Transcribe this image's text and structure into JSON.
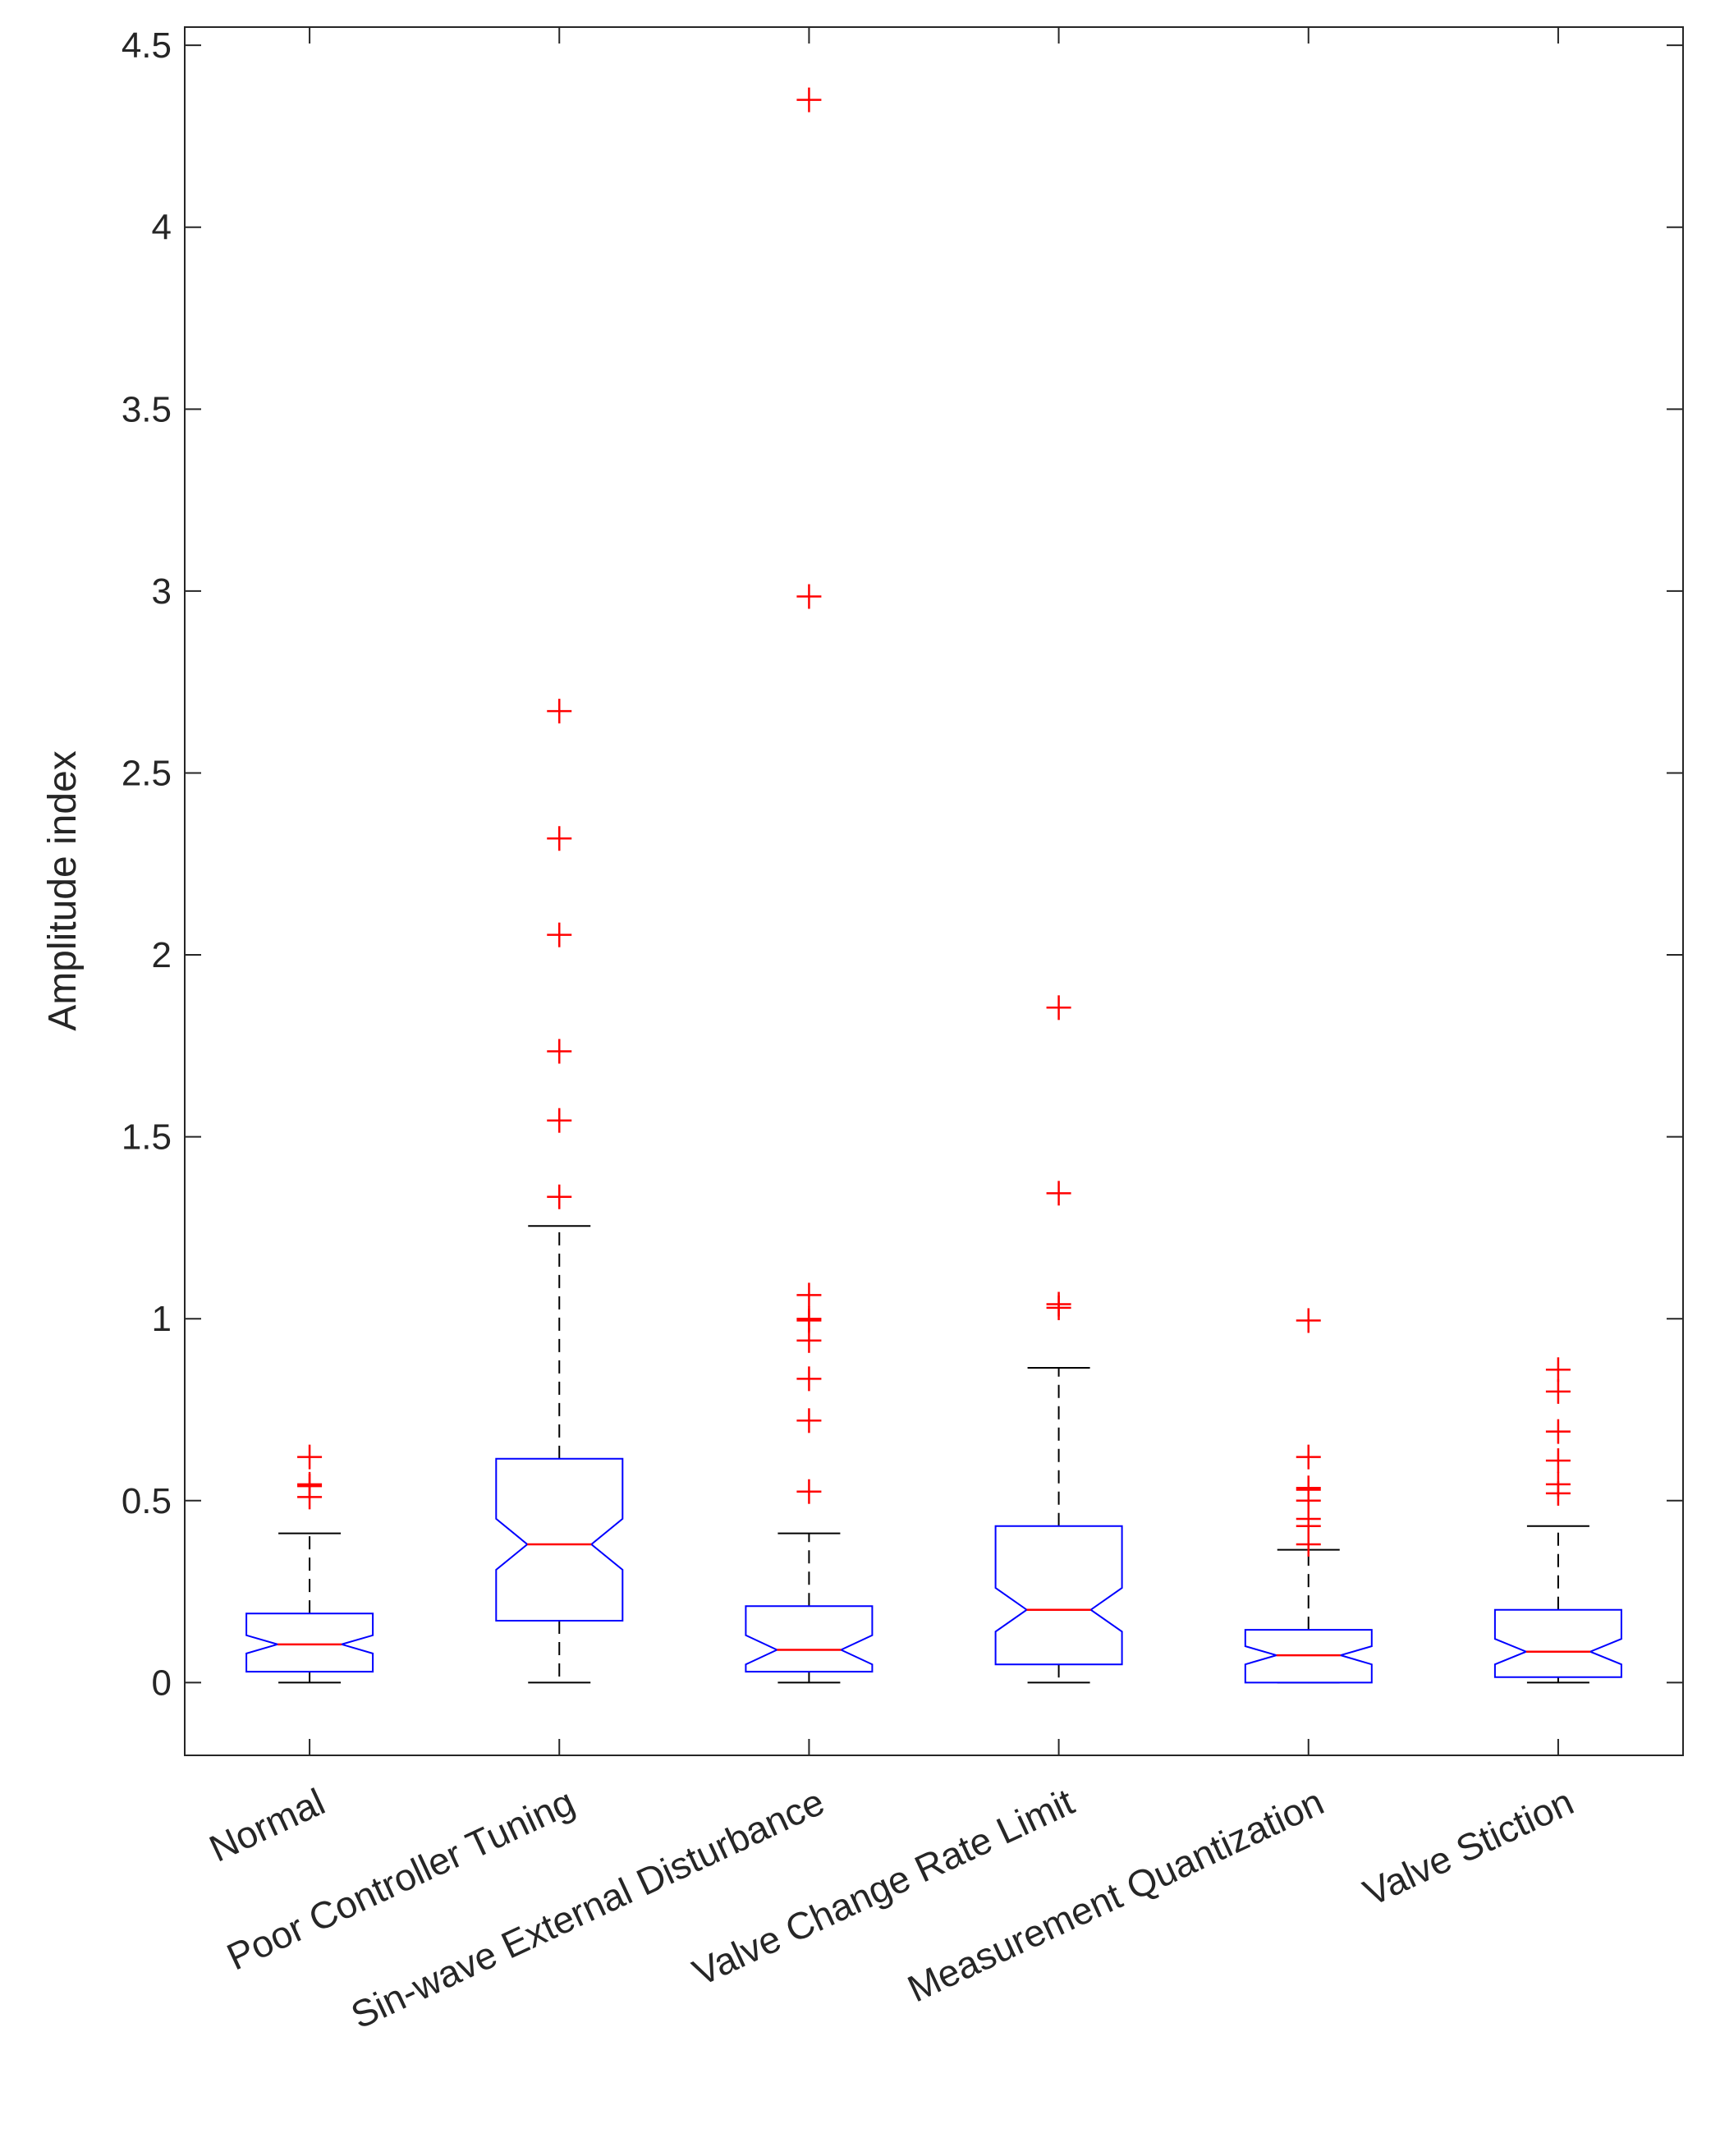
{
  "chart_data": {
    "type": "boxplot",
    "title": "",
    "xlabel": "",
    "ylabel": "Amplitude index",
    "ylim": [
      -0.2,
      4.55
    ],
    "yticks": [
      0,
      0.5,
      1,
      1.5,
      2,
      2.5,
      3,
      3.5,
      4,
      4.5
    ],
    "ytick_labels": [
      "0",
      "0.5",
      "1",
      "1.5",
      "2",
      "2.5",
      "3",
      "3.5",
      "4",
      "4.5"
    ],
    "grid": false,
    "notched": true,
    "colors": {
      "box": "#0000ff",
      "median": "#ff0000",
      "whisker": "#000000",
      "outlier": "#ff0000",
      "axis": "#262626"
    },
    "categories": [
      "Normal",
      "Poor Controller Tuning",
      "Sin-wave External Disturbance",
      "Valve Change Rate Limit",
      "Measurement Quantization",
      "Valve Stiction"
    ],
    "boxes": [
      {
        "name": "Normal",
        "whisker_low": 0.0,
        "q1": 0.03,
        "median": 0.105,
        "q3": 0.19,
        "whisker_high": 0.41,
        "notch_low": 0.08,
        "notch_high": 0.13,
        "outliers": [
          0.62,
          0.545,
          0.54,
          0.51
        ]
      },
      {
        "name": "Poor Controller Tuning",
        "whisker_low": 0.0,
        "q1": 0.17,
        "median": 0.38,
        "q3": 0.615,
        "whisker_high": 1.255,
        "notch_low": 0.31,
        "notch_high": 0.45,
        "outliers": [
          2.67,
          2.32,
          2.055,
          1.735,
          1.545,
          1.335
        ]
      },
      {
        "name": "Sin-wave External Disturbance",
        "whisker_low": 0.0,
        "q1": 0.03,
        "median": 0.09,
        "q3": 0.21,
        "whisker_high": 0.41,
        "notch_low": 0.05,
        "notch_high": 0.13,
        "outliers": [
          4.35,
          2.985,
          1.065,
          1.0,
          0.995,
          0.94,
          0.835,
          0.72,
          0.525
        ]
      },
      {
        "name": "Valve Change Rate Limit",
        "whisker_low": 0.0,
        "q1": 0.05,
        "median": 0.2,
        "q3": 0.43,
        "whisker_high": 0.865,
        "notch_low": 0.14,
        "notch_high": 0.26,
        "outliers": [
          1.855,
          1.345,
          1.04,
          1.03
        ]
      },
      {
        "name": "Measurement Quantization",
        "whisker_low": 0.0,
        "q1": 0.0,
        "median": 0.075,
        "q3": 0.145,
        "whisker_high": 0.365,
        "notch_low": 0.05,
        "notch_high": 0.1,
        "outliers": [
          0.995,
          0.62,
          0.535,
          0.53,
          0.5,
          0.45,
          0.43,
          0.38
        ]
      },
      {
        "name": "Valve Stiction",
        "whisker_low": 0.0,
        "q1": 0.015,
        "median": 0.085,
        "q3": 0.2,
        "whisker_high": 0.43,
        "notch_low": 0.05,
        "notch_high": 0.12,
        "outliers": [
          0.86,
          0.8,
          0.69,
          0.61,
          0.545,
          0.52
        ]
      }
    ]
  }
}
